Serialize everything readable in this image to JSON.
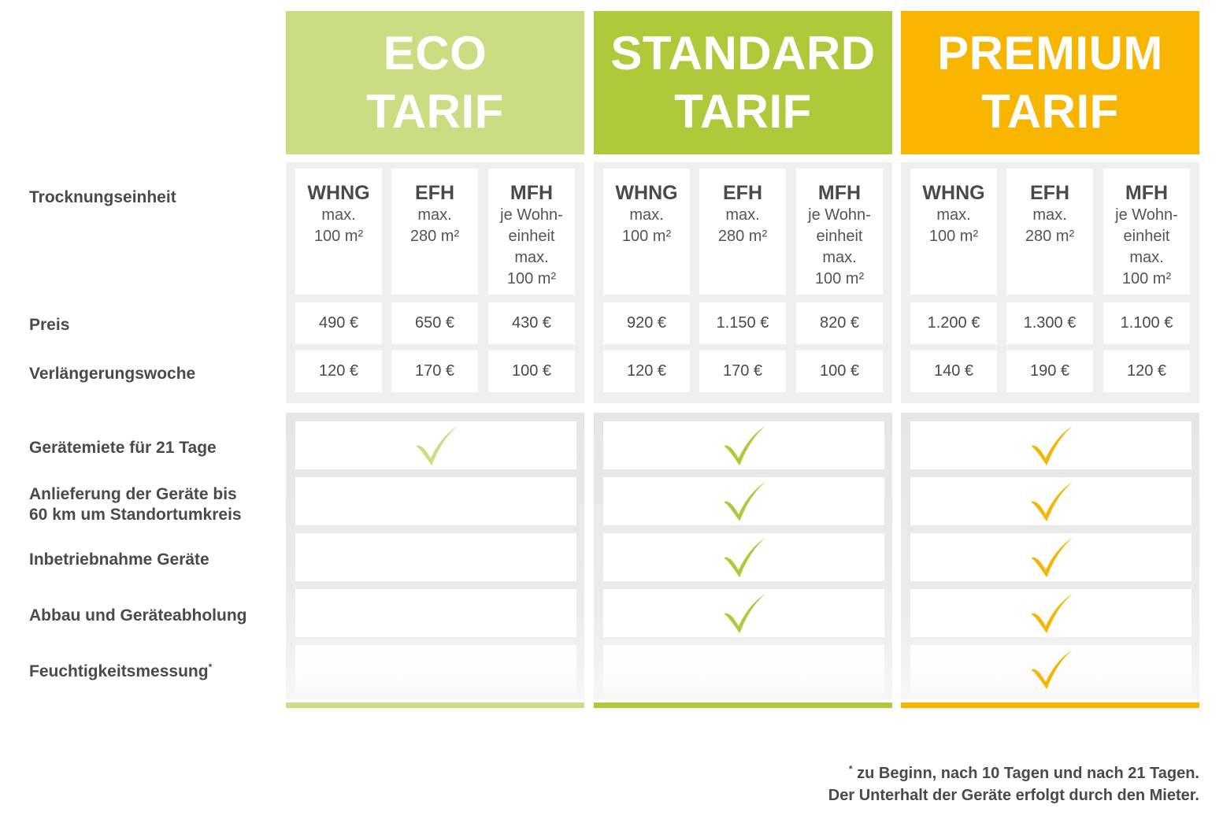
{
  "colors": {
    "eco": "#cbdc82",
    "standard": "#afc93a",
    "premium": "#f7b500",
    "panel": "#efefef"
  },
  "tiers": [
    {
      "id": "eco",
      "name_line1": "ECO",
      "name_line2": "TARIF",
      "units": [
        {
          "code": "WHNG",
          "desc": "max.\n100 m²"
        },
        {
          "code": "EFH",
          "desc": "max.\n280 m²"
        },
        {
          "code": "MFH",
          "desc": "je Wohn-\neinheit\nmax.\n100 m²"
        }
      ],
      "prices": [
        "490 €",
        "650 €",
        "430 €"
      ],
      "extension": [
        "120 €",
        "170 €",
        "100 €"
      ],
      "features": [
        true,
        false,
        false,
        false,
        false
      ]
    },
    {
      "id": "standard",
      "name_line1": "STANDARD",
      "name_line2": "TARIF",
      "units": [
        {
          "code": "WHNG",
          "desc": "max.\n100 m²"
        },
        {
          "code": "EFH",
          "desc": "max.\n280 m²"
        },
        {
          "code": "MFH",
          "desc": "je Wohn-\neinheit\nmax.\n100 m²"
        }
      ],
      "prices": [
        "920 €",
        "1.150 €",
        "820 €"
      ],
      "extension": [
        "120 €",
        "170 €",
        "100 €"
      ],
      "features": [
        true,
        true,
        true,
        true,
        false
      ]
    },
    {
      "id": "premium",
      "name_line1": "PREMIUM",
      "name_line2": "TARIF",
      "units": [
        {
          "code": "WHNG",
          "desc": "max.\n100 m²"
        },
        {
          "code": "EFH",
          "desc": "max.\n280 m²"
        },
        {
          "code": "MFH",
          "desc": "je Wohn-\neinheit\nmax.\n100 m²"
        }
      ],
      "prices": [
        "1.200 €",
        "1.300 €",
        "1.100 €"
      ],
      "extension": [
        "140 €",
        "190 €",
        "120 €"
      ],
      "features": [
        true,
        true,
        true,
        true,
        true
      ]
    }
  ],
  "row_labels": {
    "unit": "Trocknungseinheit",
    "price": "Preis",
    "extension": "Verlängerungswoche"
  },
  "features": [
    "Gerätemiete für 21 Tage",
    "Anlieferung der Geräte bis\n60 km um Standortumkreis",
    "Inbetriebnahme Geräte",
    "Abbau und Geräteabholung",
    "Feuchtigkeitsmessung"
  ],
  "feature_footnote_mark": "*",
  "footnote": {
    "mark": "*",
    "line1": "zu Beginn, nach 10 Tagen und nach 21 Tagen.",
    "line2": "Der Unterhalt der Geräte erfolgt durch den Mieter."
  },
  "icons": {
    "check": "check-icon"
  }
}
